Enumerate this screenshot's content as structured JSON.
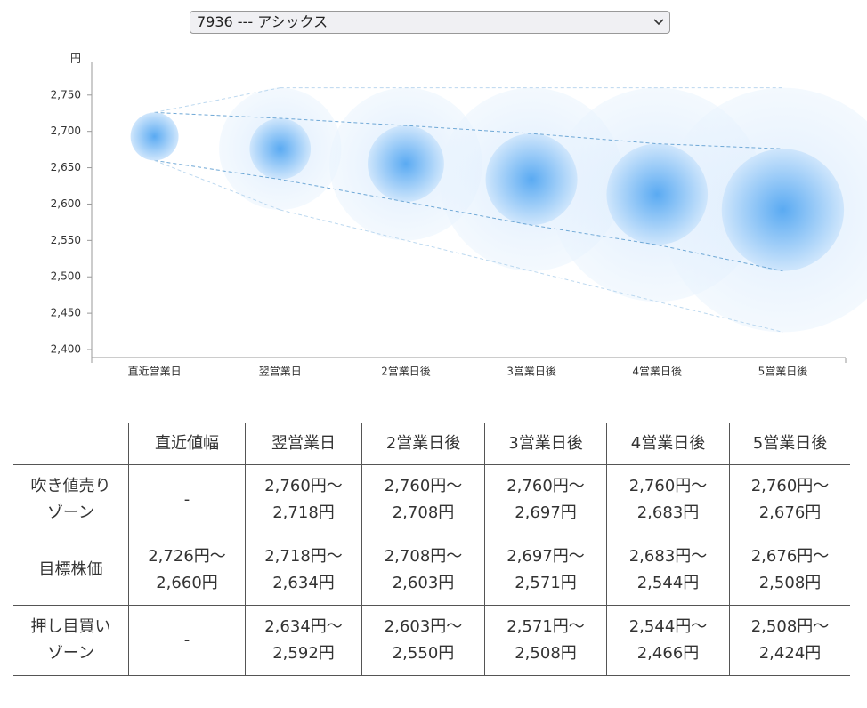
{
  "select": {
    "value": "7936 --- アシックス"
  },
  "chart_data": {
    "type": "bubble-range",
    "y_label": "円",
    "categories": [
      "直近営業日",
      "翌営業日",
      "2営業日後",
      "3営業日後",
      "4営業日後",
      "5営業日後"
    ],
    "inner_high": [
      2726,
      2718,
      2708,
      2697,
      2683,
      2676
    ],
    "inner_low": [
      2660,
      2634,
      2603,
      2571,
      2544,
      2508
    ],
    "outer_high": [
      null,
      2760,
      2760,
      2760,
      2760,
      2760
    ],
    "outer_low": [
      null,
      2592,
      2550,
      2508,
      2466,
      2424
    ],
    "ylim": [
      2389,
      2795
    ],
    "yticks": [
      {
        "value": 2400,
        "label": "2,400"
      },
      {
        "value": 2450,
        "label": "2,450"
      },
      {
        "value": 2500,
        "label": "2,500"
      },
      {
        "value": 2550,
        "label": "2,550"
      },
      {
        "value": 2600,
        "label": "2,600"
      },
      {
        "value": 2650,
        "label": "2,650"
      },
      {
        "value": 2700,
        "label": "2,700"
      },
      {
        "value": 2750,
        "label": "2,750"
      }
    ]
  },
  "table": {
    "header": [
      "直近値幅",
      "翌営業日",
      "2営業日後",
      "3営業日後",
      "4営業日後",
      "5営業日後"
    ],
    "rows": [
      {
        "label": [
          "吹き値売り",
          "ゾーン"
        ],
        "cells": [
          "-",
          [
            "2,760円～",
            "2,718円"
          ],
          [
            "2,760円～",
            "2,708円"
          ],
          [
            "2,760円～",
            "2,697円"
          ],
          [
            "2,760円～",
            "2,683円"
          ],
          [
            "2,760円～",
            "2,676円"
          ]
        ]
      },
      {
        "label": [
          "目標株価"
        ],
        "cells": [
          [
            "2,726円～",
            "2,660円"
          ],
          [
            "2,718円～",
            "2,634円"
          ],
          [
            "2,708円～",
            "2,603円"
          ],
          [
            "2,697円～",
            "2,571円"
          ],
          [
            "2,683円～",
            "2,544円"
          ],
          [
            "2,676円～",
            "2,508円"
          ]
        ]
      },
      {
        "label": [
          "押し目買い",
          "ゾーン"
        ],
        "cells": [
          "-",
          [
            "2,634円～",
            "2,592円"
          ],
          [
            "2,603円～",
            "2,550円"
          ],
          [
            "2,571円～",
            "2,508円"
          ],
          [
            "2,544円～",
            "2,466円"
          ],
          [
            "2,508円～",
            "2,424円"
          ]
        ]
      }
    ]
  }
}
